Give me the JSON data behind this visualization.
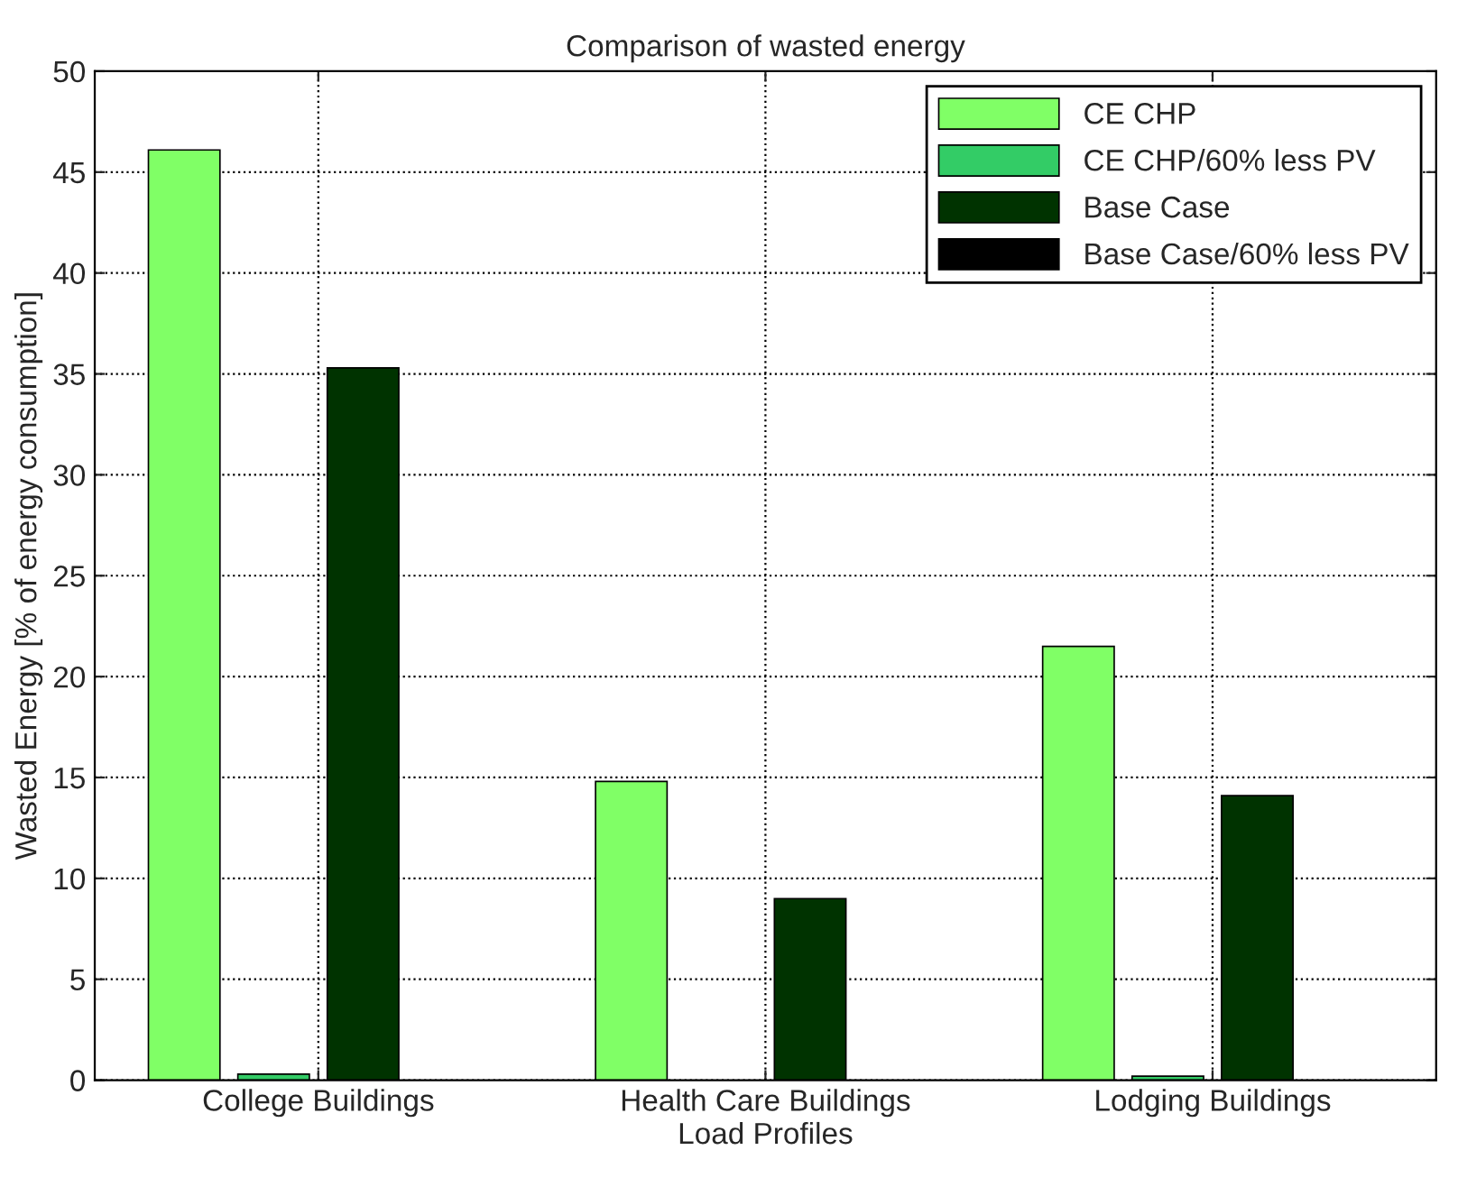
{
  "chart_data": {
    "type": "bar",
    "title": "Comparison of wasted energy",
    "xlabel": "Load Profiles",
    "ylabel": "Wasted Energy [% of energy consumption]",
    "categories": [
      "College Buildings",
      "Health Care Buildings",
      "Lodging Buildings"
    ],
    "series": [
      {
        "name": "CE CHP",
        "color": "#80ff66",
        "values": [
          46.1,
          14.8,
          21.5
        ]
      },
      {
        "name": "CE CHP/60% less PV",
        "color": "#33cc66",
        "values": [
          0.3,
          null,
          0.2
        ]
      },
      {
        "name": "Base Case",
        "color": "#003300",
        "values": [
          35.3,
          9.0,
          14.1
        ]
      },
      {
        "name": "Base Case/60% less PV",
        "color": "#000000",
        "values": [
          null,
          null,
          null
        ]
      }
    ],
    "ylim": [
      0,
      50
    ],
    "yticks": [
      0,
      5,
      10,
      15,
      20,
      25,
      30,
      35,
      40,
      45,
      50
    ],
    "grid": true,
    "legend": "top right"
  }
}
